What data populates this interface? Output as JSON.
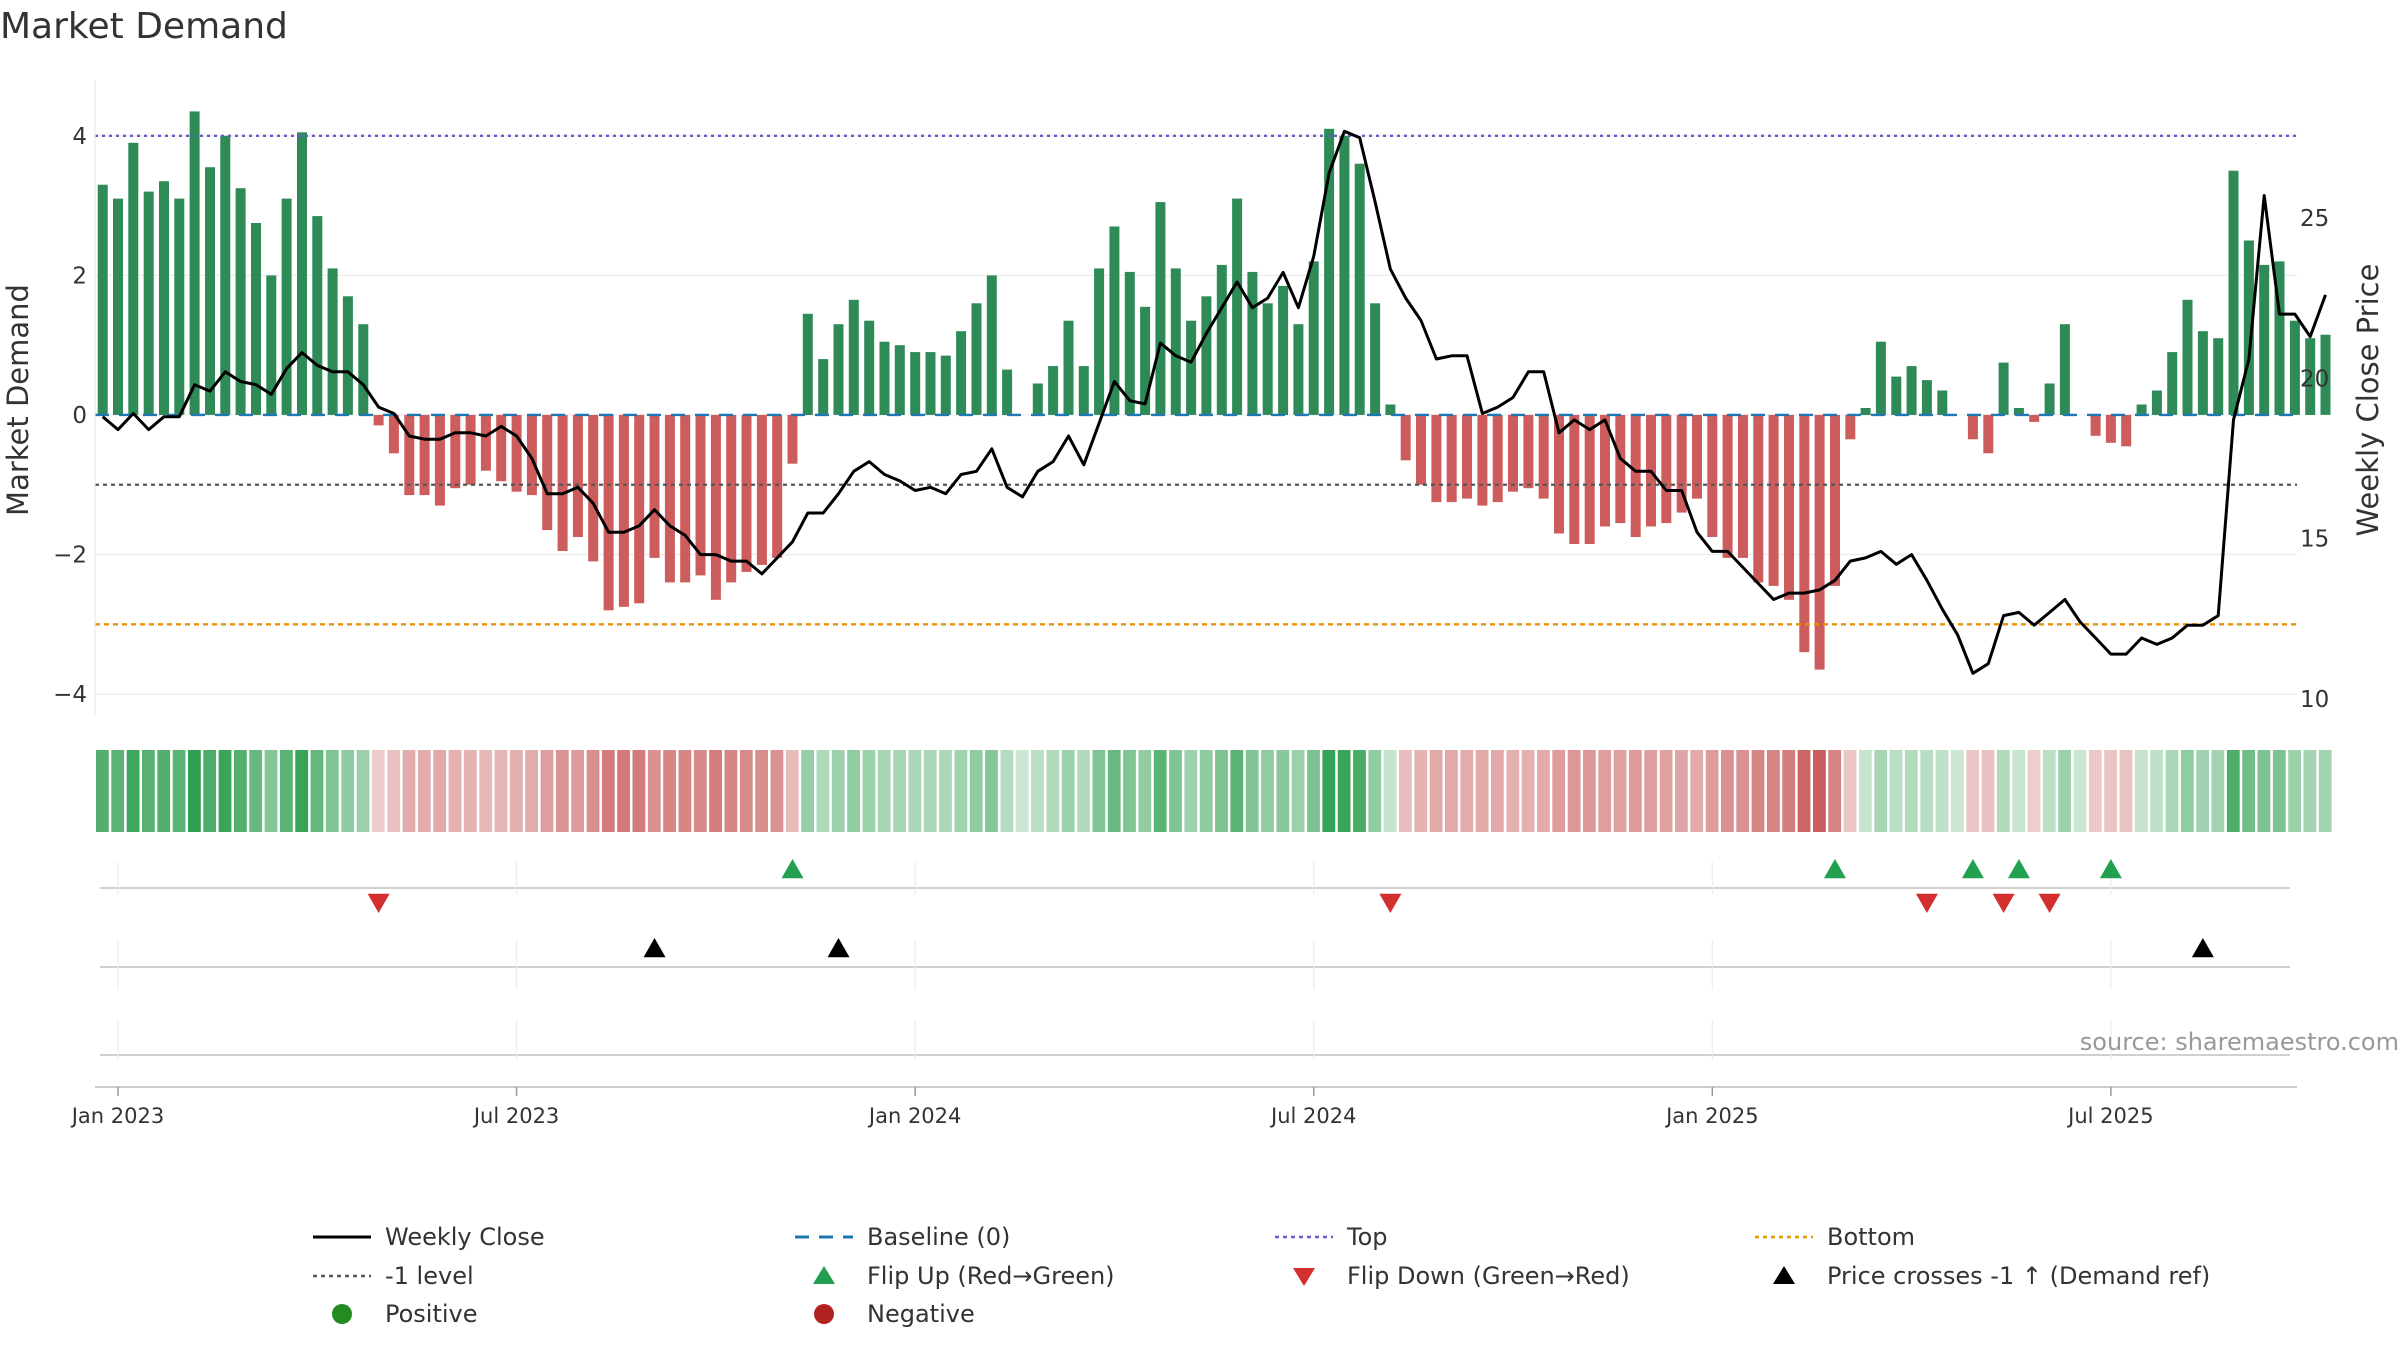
{
  "title": "Market Demand",
  "chart_data": {
    "type": "bar",
    "title": "Market Demand",
    "ylabel": "Market Demand",
    "y2label": "Weekly Close Price",
    "ylim": [
      -4.3,
      4.8
    ],
    "y2lim": [
      9.5,
      29.3
    ],
    "yticks": [
      4,
      2,
      0,
      -2,
      -4
    ],
    "yticks_labels": [
      "4",
      "2",
      "0",
      "−2",
      "−4"
    ],
    "y2ticks": [
      25,
      20,
      15,
      10
    ],
    "xtick_labels": [
      "Jan 2023",
      "Jul 2023",
      "Jan 2024",
      "Jul 2024",
      "Jan 2025",
      "Jul 2025"
    ],
    "xtick_weeks": [
      1.5,
      27.5,
      53.5,
      79.5,
      105.5,
      131.5
    ],
    "reference_lines": {
      "top": 4,
      "minus_one": -1,
      "bottom": -3,
      "baseline": 0
    },
    "demand_values": [
      3.3,
      3.1,
      3.9,
      3.2,
      3.35,
      3.1,
      4.35,
      3.55,
      4.0,
      3.25,
      2.75,
      2.0,
      3.1,
      4.05,
      2.85,
      2.1,
      1.7,
      1.3,
      -0.15,
      -0.55,
      -1.15,
      -1.15,
      -1.3,
      -1.05,
      -1.0,
      -0.8,
      -0.95,
      -1.1,
      -1.15,
      -1.65,
      -1.95,
      -1.75,
      -2.1,
      -2.8,
      -2.75,
      -2.7,
      -2.05,
      -2.4,
      -2.4,
      -2.3,
      -2.65,
      -2.4,
      -2.25,
      -2.15,
      -2.05,
      -0.7,
      1.45,
      0.8,
      1.3,
      1.65,
      1.35,
      1.05,
      1.0,
      0.9,
      0.9,
      0.85,
      1.2,
      1.6,
      2.0,
      0.65,
      0.0,
      0.45,
      0.7,
      1.35,
      0.7,
      2.1,
      2.7,
      2.05,
      1.55,
      3.05,
      2.1,
      1.35,
      1.7,
      2.15,
      3.1,
      2.05,
      1.6,
      1.85,
      1.3,
      2.2,
      4.1,
      4.0,
      3.6,
      1.6,
      0.15,
      -0.65,
      -1.0,
      -1.25,
      -1.25,
      -1.2,
      -1.3,
      -1.25,
      -1.1,
      -1.05,
      -1.2,
      -1.7,
      -1.85,
      -1.85,
      -1.6,
      -1.55,
      -1.75,
      -1.6,
      -1.55,
      -1.4,
      -1.2,
      -1.75,
      -2.05,
      -2.05,
      -2.4,
      -2.45,
      -2.65,
      -3.4,
      -3.65,
      -2.45,
      -0.35,
      0.1,
      1.05,
      0.55,
      0.7,
      0.5,
      0.35,
      0.0,
      -0.35,
      -0.55,
      0.75,
      0.1,
      -0.1,
      0.45,
      1.3,
      0.0,
      -0.3,
      -0.4,
      -0.45,
      0.15,
      0.35,
      0.9,
      1.65,
      1.2,
      1.1,
      3.5,
      2.5,
      2.15,
      2.2,
      1.35,
      1.1,
      1.15
    ],
    "price_values": [
      18.8,
      18.4,
      18.9,
      18.4,
      18.8,
      18.8,
      19.8,
      19.6,
      20.2,
      19.9,
      19.8,
      19.5,
      20.3,
      20.8,
      20.4,
      20.2,
      20.2,
      19.8,
      19.1,
      18.9,
      18.2,
      18.1,
      18.1,
      18.3,
      18.3,
      18.2,
      18.5,
      18.2,
      17.5,
      16.4,
      16.4,
      16.6,
      16.1,
      15.2,
      15.2,
      15.4,
      15.9,
      15.4,
      15.1,
      14.5,
      14.5,
      14.3,
      14.3,
      13.9,
      14.4,
      14.9,
      15.8,
      15.8,
      16.4,
      17.1,
      17.4,
      17.0,
      16.8,
      16.5,
      16.6,
      16.4,
      17.0,
      17.1,
      17.8,
      16.6,
      16.3,
      17.1,
      17.4,
      18.2,
      17.3,
      18.6,
      19.9,
      19.3,
      19.2,
      21.1,
      20.7,
      20.5,
      21.4,
      22.2,
      23.0,
      22.2,
      22.5,
      23.3,
      22.2,
      23.8,
      26.4,
      27.7,
      27.5,
      25.5,
      23.4,
      22.5,
      21.8,
      20.6,
      20.7,
      20.7,
      18.9,
      19.1,
      19.4,
      20.2,
      20.2,
      18.3,
      18.7,
      18.4,
      18.7,
      17.5,
      17.1,
      17.1,
      16.5,
      16.5,
      15.2,
      14.6,
      14.6,
      14.1,
      13.6,
      13.1,
      13.3,
      13.3,
      13.4,
      13.7,
      14.3,
      14.4,
      14.6,
      14.2,
      14.5,
      13.7,
      12.8,
      12.0,
      10.8,
      11.1,
      12.6,
      12.7,
      12.3,
      12.7,
      13.1,
      12.4,
      11.9,
      11.4,
      11.4,
      11.9,
      11.7,
      11.9,
      12.3,
      12.3,
      12.6,
      18.7,
      20.6,
      25.7,
      22.0,
      22.0,
      21.3,
      22.6
    ],
    "flip_up_weeks": [
      45.5,
      113.5,
      122.5,
      125.5,
      131.5
    ],
    "flip_down_weeks": [
      18.5,
      84.5,
      119.5,
      124.5,
      127.5
    ],
    "price_cross_weeks": [
      36.5,
      48.5,
      137.5
    ],
    "legend": [
      {
        "label": "Weekly Close",
        "marker": "solid-line",
        "color": "#000000"
      },
      {
        "label": "Baseline (0)",
        "marker": "dash-line",
        "color": "#1f77b4"
      },
      {
        "label": "Top",
        "marker": "dot-line",
        "color": "#6a5acd"
      },
      {
        "label": "Bottom",
        "marker": "dot-line",
        "color": "#e69500"
      },
      {
        "label": "-1 level",
        "marker": "dot-line",
        "color": "#555555"
      },
      {
        "label": "Flip Up (Red→Green)",
        "marker": "triangle-up",
        "color": "#22a050"
      },
      {
        "label": "Flip Down (Green→Red)",
        "marker": "triangle-down",
        "color": "#d32f2f"
      },
      {
        "label": "Price crosses -1 ↑ (Demand ref)",
        "marker": "triangle-up",
        "color": "#000000"
      },
      {
        "label": "Positive",
        "marker": "circle",
        "color": "#228b22"
      },
      {
        "label": "Negative",
        "marker": "circle",
        "color": "#b22222"
      }
    ],
    "legend_position": "bottom"
  },
  "source_note": "source: sharemaestro.com",
  "colors": {
    "positive_bar": "#2e8b57",
    "negative_bar": "#cd5c5c",
    "price_line": "#000000",
    "top_line": "#6a5acd",
    "bottom_line": "#e69500",
    "minus_one_line": "#555555",
    "baseline": "#1f77b4",
    "flip_up": "#22a050",
    "flip_down": "#d32f2f",
    "cross_marker": "#000000"
  }
}
